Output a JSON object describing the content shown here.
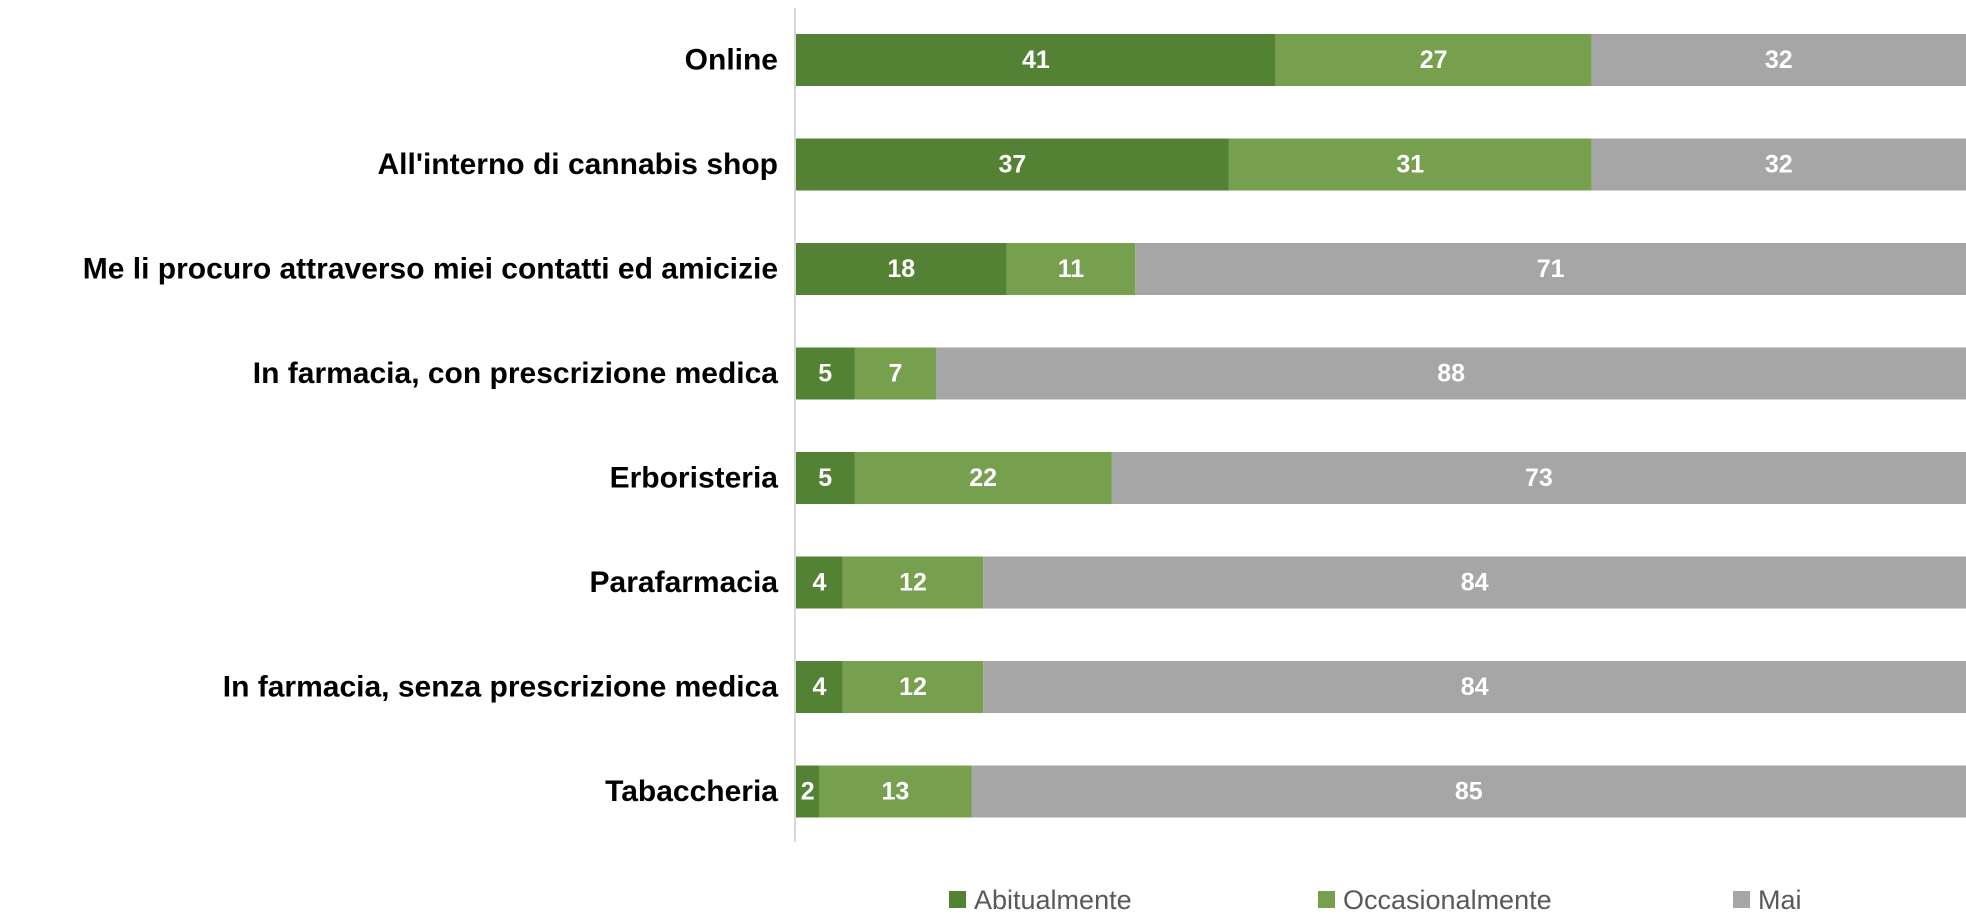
{
  "chart_data": {
    "type": "bar",
    "orientation": "horizontal",
    "stacked": true,
    "title": "",
    "xlabel": "",
    "ylabel": "",
    "xlim": [
      0,
      100
    ],
    "grid": false,
    "legend_position": "bottom",
    "categories": [
      "Online",
      "All'interno di cannabis shop",
      "Me li procuro attraverso miei contatti ed amicizie",
      "In farmacia, con prescrizione medica",
      "Erboristeria",
      "Parafarmacia",
      "In farmacia, senza prescrizione medica",
      "Tabaccheria"
    ],
    "series": [
      {
        "name": "Abitualmente",
        "color": "#548235",
        "values": [
          41,
          37,
          18,
          5,
          5,
          4,
          4,
          2
        ]
      },
      {
        "name": "Occasionalmente",
        "color": "#76a04e",
        "values": [
          27,
          31,
          11,
          7,
          22,
          12,
          12,
          13
        ]
      },
      {
        "name": "Mai",
        "color": "#a6a6a6",
        "values": [
          32,
          32,
          71,
          88,
          73,
          84,
          84,
          85
        ]
      }
    ]
  }
}
